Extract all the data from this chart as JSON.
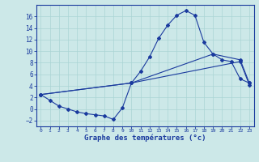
{
  "xlabel": "Graphe des températures (°c)",
  "bg_color": "#cce8e8",
  "line_color": "#1a3a9e",
  "grid_color": "#aad4d4",
  "ylim": [
    -3,
    18
  ],
  "xlim": [
    -0.5,
    23.5
  ],
  "yticks": [
    -2,
    0,
    2,
    4,
    6,
    8,
    10,
    12,
    14,
    16
  ],
  "xticks": [
    0,
    1,
    2,
    3,
    4,
    5,
    6,
    7,
    8,
    9,
    10,
    11,
    12,
    13,
    14,
    15,
    16,
    17,
    18,
    19,
    20,
    21,
    22,
    23
  ],
  "line1_x": [
    0,
    1,
    2,
    3,
    4,
    5,
    6,
    7,
    8,
    9,
    10,
    11,
    12,
    13,
    14,
    15,
    16,
    17,
    18,
    19,
    20,
    21,
    22,
    23
  ],
  "line1_y": [
    2.5,
    1.5,
    0.5,
    0.0,
    -0.5,
    -0.8,
    -1.0,
    -1.2,
    -1.8,
    0.2,
    4.5,
    6.5,
    9.0,
    12.2,
    14.5,
    16.2,
    17.0,
    16.2,
    11.5,
    9.5,
    8.5,
    8.2,
    5.2,
    4.5
  ],
  "line2_x": [
    0,
    10,
    19,
    22,
    23
  ],
  "line2_y": [
    2.5,
    4.5,
    9.5,
    8.5,
    4.5
  ],
  "line3_x": [
    0,
    10,
    22,
    23
  ],
  "line3_y": [
    2.5,
    4.5,
    8.2,
    4.2
  ]
}
